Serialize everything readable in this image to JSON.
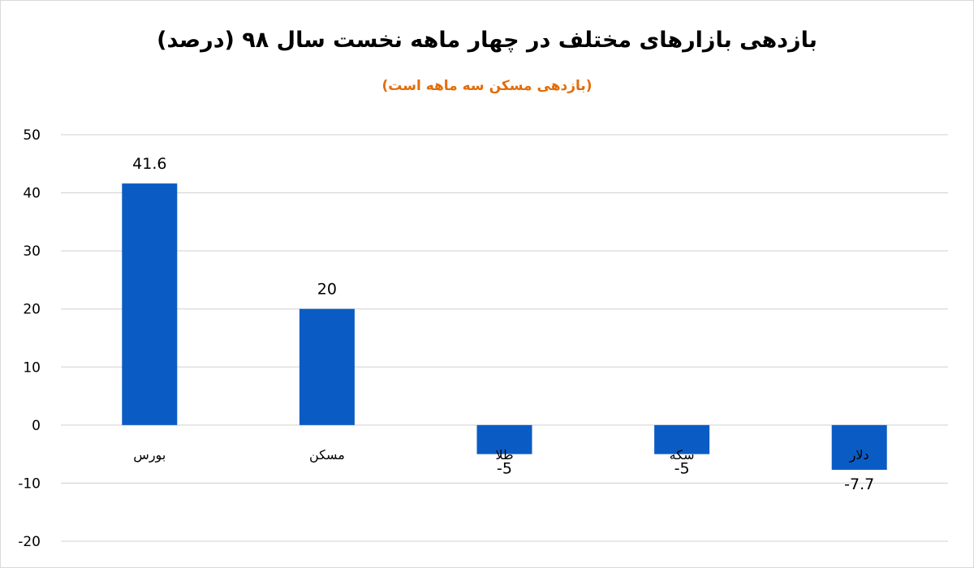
{
  "colors": {
    "bar": "#0a5cc4",
    "grid": "#d9d9d9",
    "subtitle": "#e36c09",
    "text": "#000000"
  },
  "chart_data": {
    "type": "bar",
    "title": "بازدهی بازارهای مختلف در چهار ماهه نخست سال ۹۸  (درصد)",
    "subtitle": "(بازدهی مسکن سه ماهه است)",
    "categories": [
      "بورس",
      "مسکن",
      "طلا",
      "سکه",
      "دلار"
    ],
    "values": [
      41.6,
      20,
      -5,
      -5,
      -7.7
    ],
    "data_labels": [
      "41.6",
      "20",
      "-5",
      "-5",
      "-7.7"
    ],
    "ylim": [
      -20,
      50
    ],
    "yticks": [
      50,
      40,
      30,
      20,
      10,
      0,
      -10,
      -20
    ],
    "grid": true,
    "legend": "none",
    "xlabel": "",
    "ylabel": ""
  }
}
